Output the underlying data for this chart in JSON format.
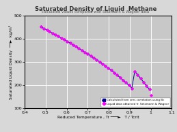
{
  "title": "Saturated Density of Liquid  Methane",
  "subtitle": "calculated values compared with Setzmann & Wagner data",
  "xlabel": "Reduced Temperature , Tr ───►   T / Tcrit",
  "ylabel": "Saturated Liquid Density  ──►  kg/m³",
  "xlim": [
    0.4,
    1.1
  ],
  "ylim": [
    100,
    500
  ],
  "xticks": [
    0.4,
    0.5,
    0.6,
    0.7,
    0.8,
    0.9,
    1.0,
    1.1
  ],
  "yticks": [
    100,
    200,
    300,
    400,
    500
  ],
  "bg_color": "#c8c8c8",
  "fig_color": "#d8d8d8",
  "grid_color": "white",
  "calc_color": "#00008B",
  "lit_color": "#FF00FF",
  "calc_label": "Calculated from sres correlation using Bc",
  "lit_label": "Liquid data obtained fr. Setzmann & Wagner",
  "calc_data_x": [
    0.476,
    0.49,
    0.505,
    0.518,
    0.532,
    0.546,
    0.56,
    0.574,
    0.588,
    0.602,
    0.616,
    0.63,
    0.644,
    0.658,
    0.672,
    0.686,
    0.7,
    0.714,
    0.728,
    0.742,
    0.756,
    0.77,
    0.784,
    0.798,
    0.812,
    0.826,
    0.84,
    0.854,
    0.868,
    0.882,
    0.896,
    0.91,
    0.924,
    0.938,
    0.952,
    0.966,
    0.98,
    0.994
  ],
  "calc_data_y": [
    453,
    446,
    439,
    432,
    425,
    418,
    411,
    404,
    397,
    390,
    382,
    374,
    367,
    359,
    351,
    343,
    335,
    327,
    318,
    310,
    301,
    292,
    283,
    273,
    264,
    254,
    244,
    233,
    222,
    211,
    199,
    187,
    260,
    245,
    229,
    213,
    196,
    182
  ],
  "lit_data_x": [
    0.476,
    0.49,
    0.505,
    0.518,
    0.532,
    0.546,
    0.56,
    0.574,
    0.588,
    0.602,
    0.616,
    0.63,
    0.644,
    0.658,
    0.672,
    0.686,
    0.7,
    0.714,
    0.728,
    0.742,
    0.756,
    0.77,
    0.784,
    0.798,
    0.812,
    0.826,
    0.84,
    0.854,
    0.868,
    0.882,
    0.896,
    0.91,
    0.924,
    0.938,
    0.952,
    0.966,
    0.98,
    0.994,
    1.002
  ],
  "lit_data_y": [
    453,
    446,
    439,
    432,
    425,
    418,
    411,
    404,
    397,
    390,
    382,
    374,
    367,
    359,
    351,
    343,
    335,
    327,
    318,
    310,
    301,
    292,
    283,
    273,
    264,
    254,
    244,
    233,
    222,
    211,
    199,
    187,
    260,
    245,
    229,
    213,
    196,
    182,
    155
  ]
}
